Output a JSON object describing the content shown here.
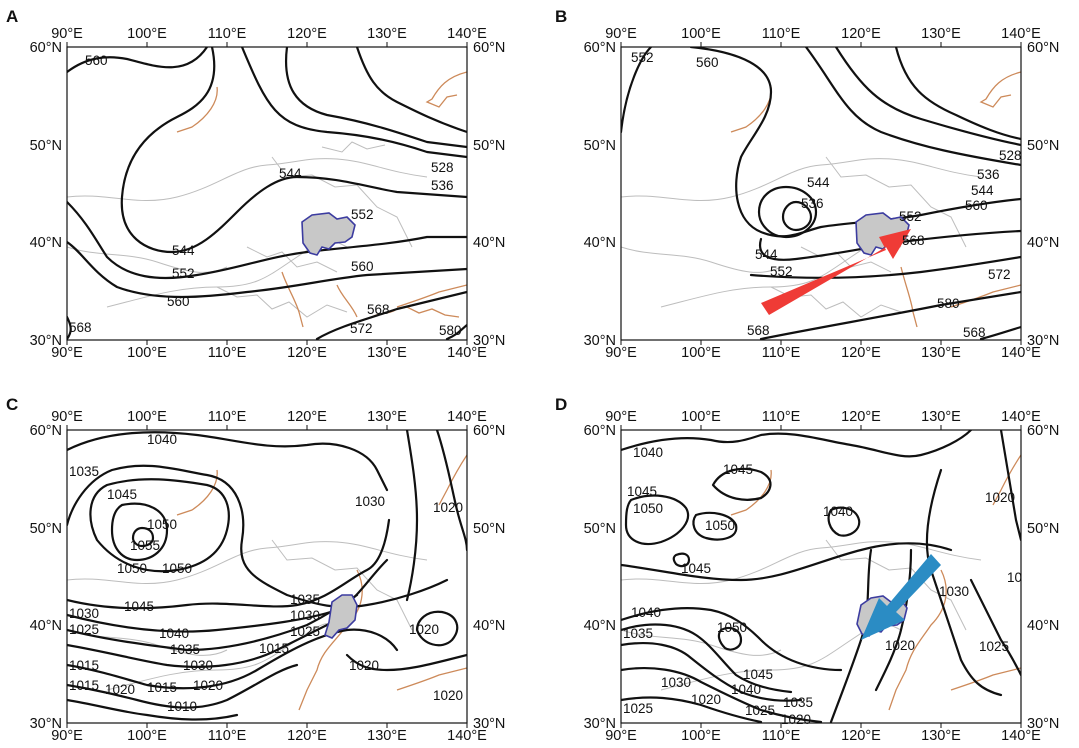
{
  "colors": {
    "contour": "#111111",
    "border": "#bdbdbd",
    "coast": "#cd8a5a",
    "region_fill": "#c8c8c8",
    "region_edge": "#3c3ca0",
    "arrow_red": "#ef3b36",
    "arrow_blue": "#2b8cc4"
  },
  "axes": {
    "x_ticks": [
      "90°E",
      "100°E",
      "110°E",
      "120°E",
      "130°E",
      "140°E"
    ],
    "y_ticks": [
      "60°N",
      "50°N",
      "40°N",
      "30°N"
    ]
  },
  "panels": [
    {
      "label": "A",
      "contour_labels": [
        "560",
        "544",
        "552",
        "544",
        "552",
        "528",
        "536",
        "552",
        "560",
        "568",
        "572",
        "568",
        "580"
      ]
    },
    {
      "label": "B",
      "contour_labels": [
        "552",
        "560",
        "544",
        "536",
        "544",
        "552",
        "552",
        "528",
        "536",
        "544",
        "560",
        "568",
        "572",
        "580",
        "568"
      ],
      "arrow": {
        "color": "red",
        "direction": "south-west to north-east"
      }
    },
    {
      "label": "C",
      "contour_labels": [
        "1040",
        "1035",
        "1045",
        "1050",
        "1055",
        "1050",
        "1050",
        "1045",
        "1030",
        "1025",
        "1040",
        "1035",
        "1030",
        "1015",
        "1020",
        "1015",
        "1015",
        "1020",
        "1010",
        "1015",
        "1035",
        "1030",
        "1025",
        "1020",
        "1020",
        "1030",
        "1020",
        "1020"
      ]
    },
    {
      "label": "D",
      "contour_labels": [
        "1040",
        "1045",
        "1045",
        "1050",
        "1050",
        "1040",
        "1045",
        "1020",
        "1030",
        "10",
        "1040",
        "1035",
        "1050",
        "1025",
        "1030",
        "1045",
        "1040",
        "1035",
        "1020",
        "1025",
        "1020",
        "1025",
        "1020"
      ],
      "arrow": {
        "color": "blue",
        "direction": "north-east to south-west"
      }
    }
  ]
}
